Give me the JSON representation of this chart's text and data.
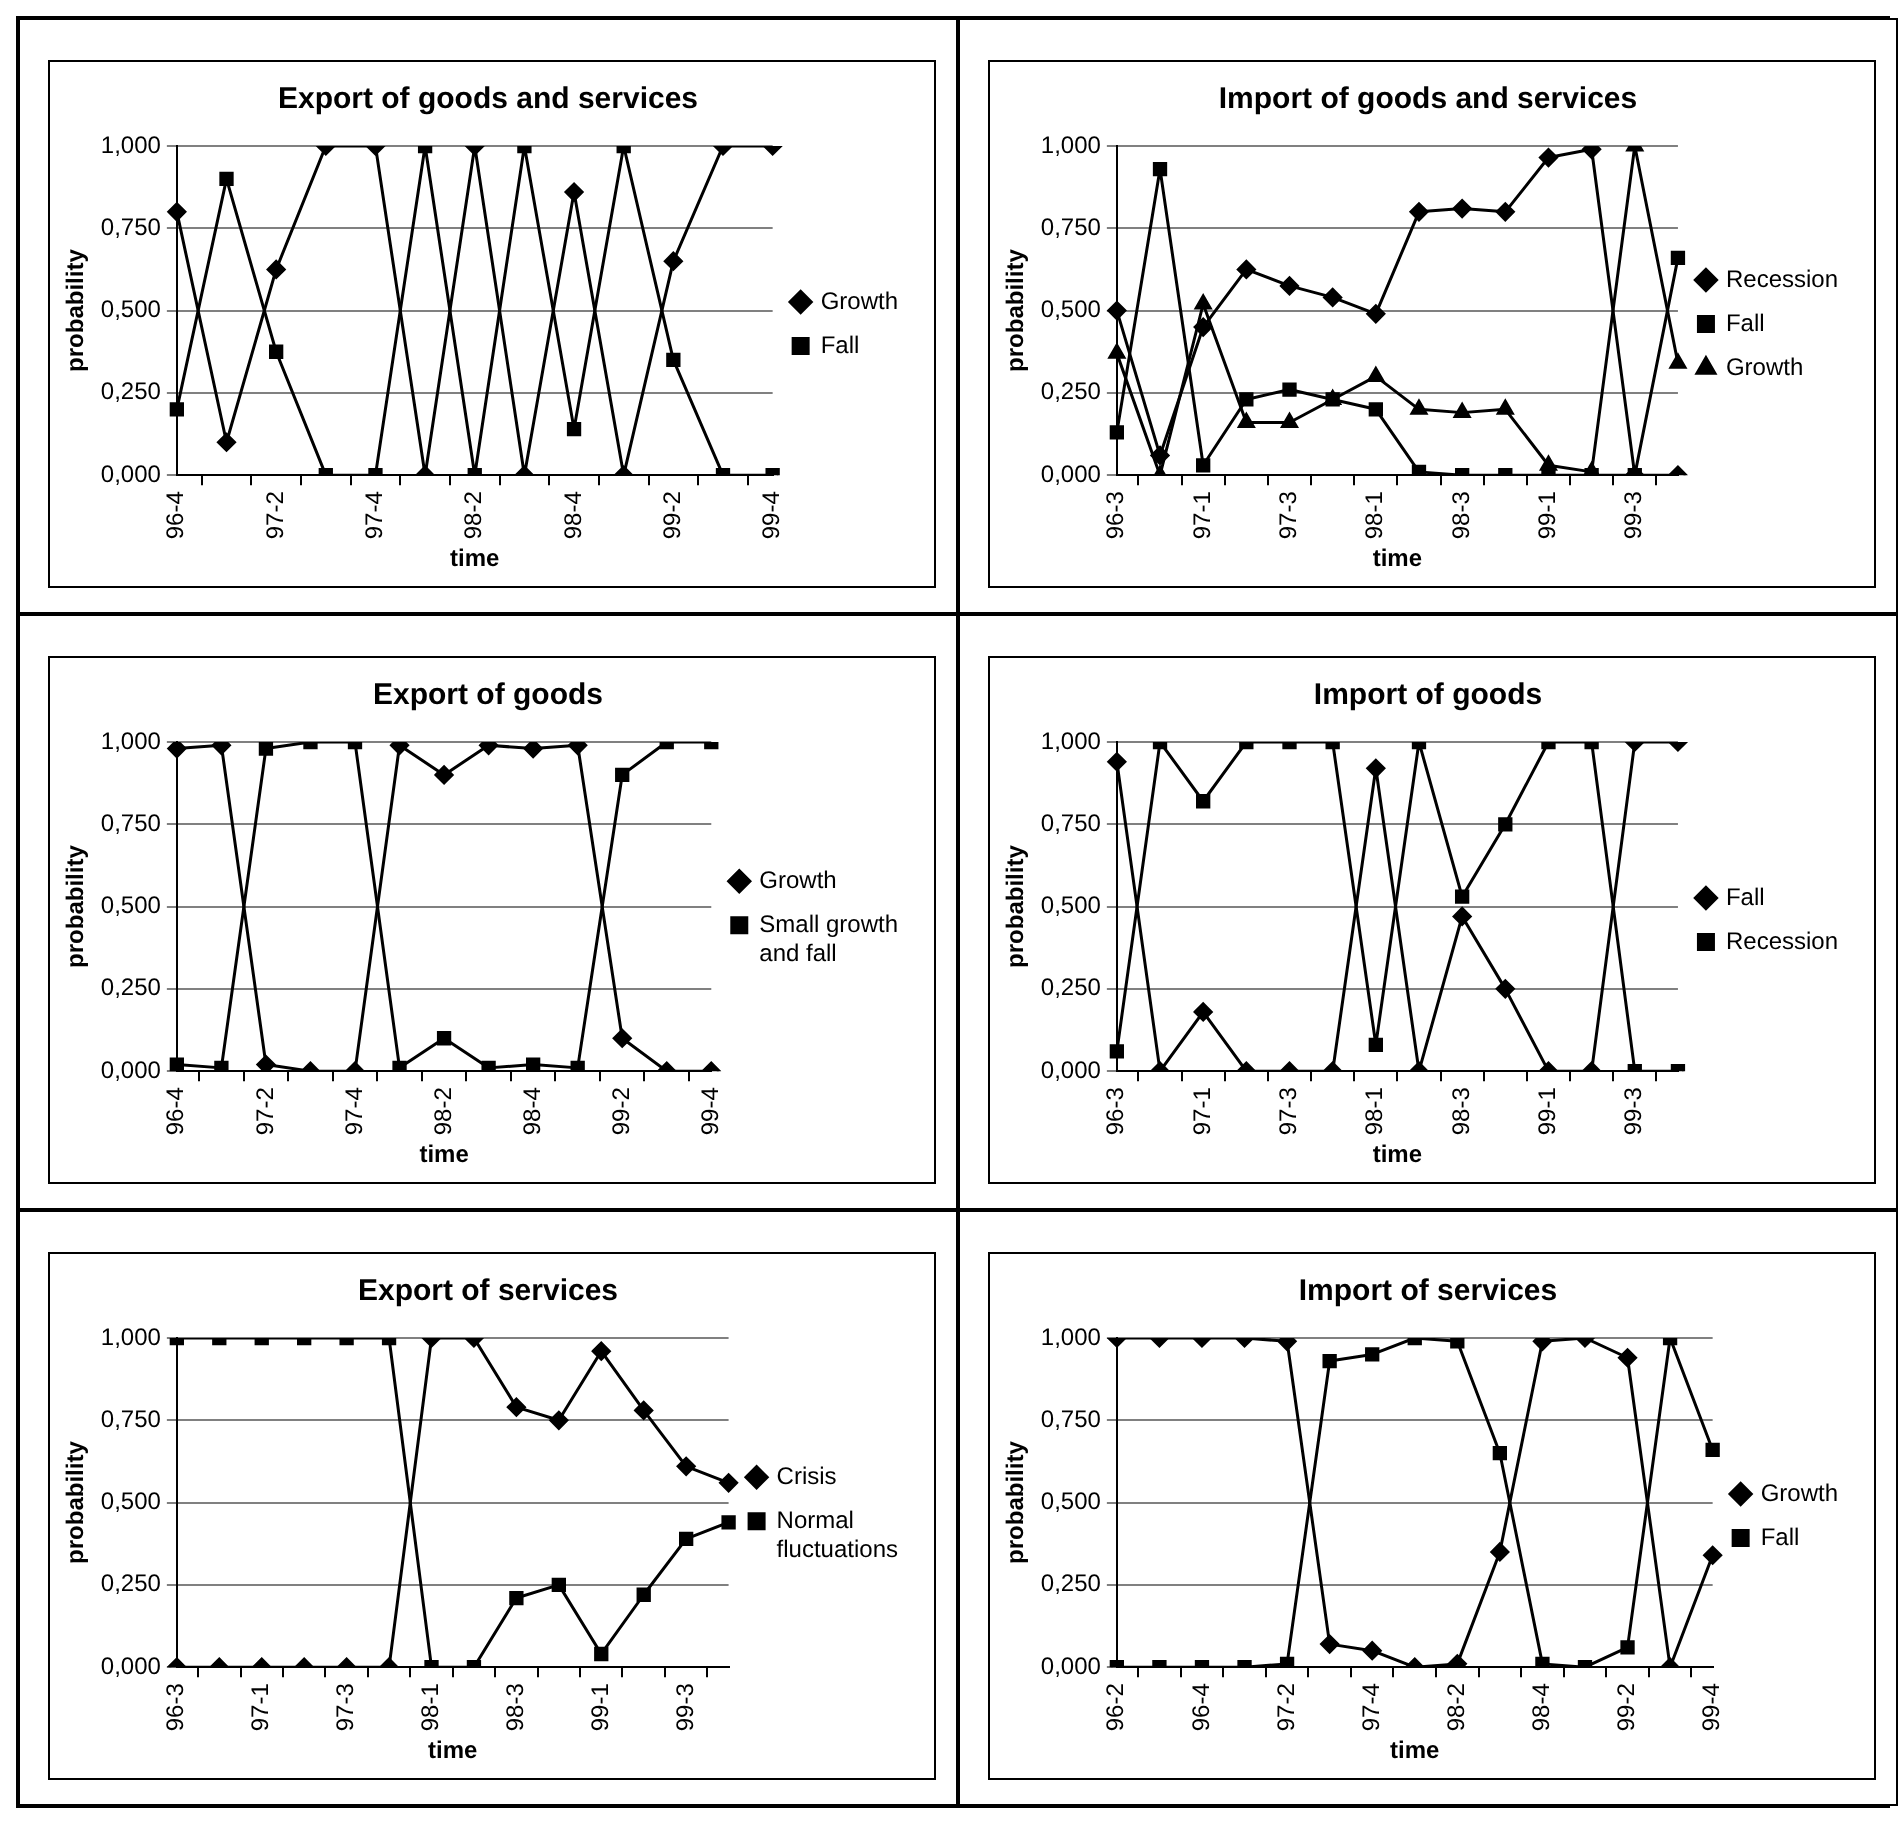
{
  "chart_data": [
    {
      "type": "line",
      "title": "Export of goods and services",
      "xlabel": "time",
      "ylabel": "probability",
      "categories": [
        "96-4",
        null,
        "97-2",
        null,
        "97-4",
        null,
        "98-2",
        null,
        "98-4",
        null,
        "99-2",
        null,
        "99-4"
      ],
      "ylim": [
        0,
        1
      ],
      "yticks": [
        {
          "value": 0,
          "label": "0,000"
        },
        {
          "value": 0.25,
          "label": "0,250"
        },
        {
          "value": 0.5,
          "label": "0,500"
        },
        {
          "value": 0.75,
          "label": "0,750"
        },
        {
          "value": 1,
          "label": "1,000"
        }
      ],
      "grid": "y",
      "legend": "right",
      "series": [
        {
          "name": "Growth",
          "color": "#000000",
          "marker": "diamond",
          "values": [
            0.8,
            0.1,
            0.625,
            1,
            1,
            0,
            1,
            0,
            0.86,
            0,
            0.65,
            1,
            1
          ]
        },
        {
          "name": "Fall",
          "color": "#000000",
          "marker": "square",
          "values": [
            0.2,
            0.9,
            0.375,
            0,
            0,
            1,
            0,
            1,
            0.14,
            1,
            0.35,
            0,
            0
          ]
        }
      ]
    },
    {
      "type": "line",
      "title": "Import of goods and services",
      "xlabel": "time",
      "ylabel": "probability",
      "categories": [
        "96-3",
        null,
        "97-1",
        null,
        "97-3",
        null,
        "98-1",
        null,
        "98-3",
        null,
        "99-1",
        null,
        "99-3",
        null
      ],
      "ylim": [
        0,
        1
      ],
      "yticks": [
        {
          "value": 0,
          "label": "0,000"
        },
        {
          "value": 0.25,
          "label": "0,250"
        },
        {
          "value": 0.5,
          "label": "0,500"
        },
        {
          "value": 0.75,
          "label": "0,750"
        },
        {
          "value": 1,
          "label": "1,000"
        }
      ],
      "grid": "y",
      "legend": "right",
      "series": [
        {
          "name": "Recession",
          "color": "#000000",
          "marker": "diamond",
          "values": [
            0.5,
            0.06,
            0.45,
            0.625,
            0.575,
            0.54,
            0.49,
            0.8,
            0.81,
            0.8,
            0.965,
            0.99,
            0,
            0
          ]
        },
        {
          "name": "Fall",
          "color": "#000000",
          "marker": "square",
          "values": [
            0.13,
            0.93,
            0.03,
            0.23,
            0.26,
            0.23,
            0.2,
            0.01,
            0,
            0,
            0,
            0,
            0,
            0.66
          ]
        },
        {
          "name": "Growth",
          "color": "#000000",
          "marker": "triangle",
          "values": [
            0.37,
            0,
            0.52,
            0.16,
            0.16,
            0.23,
            0.3,
            0.2,
            0.19,
            0.2,
            0.03,
            0.01,
            1,
            0.34
          ]
        }
      ]
    },
    {
      "type": "line",
      "title": "Export of goods",
      "xlabel": "time",
      "ylabel": "probability",
      "categories": [
        "96-4",
        null,
        "97-2",
        null,
        "97-4",
        null,
        "98-2",
        null,
        "98-4",
        null,
        "99-2",
        null,
        "99-4"
      ],
      "ylim": [
        0,
        1
      ],
      "yticks": [
        {
          "value": 0,
          "label": "0,000"
        },
        {
          "value": 0.25,
          "label": "0,250"
        },
        {
          "value": 0.5,
          "label": "0,500"
        },
        {
          "value": 0.75,
          "label": "0,750"
        },
        {
          "value": 1,
          "label": "1,000"
        }
      ],
      "grid": "y",
      "legend": "right",
      "series": [
        {
          "name": "Growth",
          "color": "#000000",
          "marker": "diamond",
          "values": [
            0.98,
            0.99,
            0.02,
            0,
            0,
            0.99,
            0.9,
            0.99,
            0.98,
            0.99,
            0.1,
            0,
            0
          ]
        },
        {
          "name": "Small growth and fall",
          "color": "#000000",
          "marker": "square",
          "values": [
            0.02,
            0.01,
            0.98,
            1,
            1,
            0.01,
            0.1,
            0.01,
            0.02,
            0.01,
            0.9,
            1,
            1
          ]
        }
      ]
    },
    {
      "type": "line",
      "title": "Import of goods",
      "xlabel": "time",
      "ylabel": "probability",
      "categories": [
        "96-3",
        null,
        "97-1",
        null,
        "97-3",
        null,
        "98-1",
        null,
        "98-3",
        null,
        "99-1",
        null,
        "99-3",
        null
      ],
      "ylim": [
        0,
        1
      ],
      "yticks": [
        {
          "value": 0,
          "label": "0,000"
        },
        {
          "value": 0.25,
          "label": "0,250"
        },
        {
          "value": 0.5,
          "label": "0,500"
        },
        {
          "value": 0.75,
          "label": "0,750"
        },
        {
          "value": 1,
          "label": "1,000"
        }
      ],
      "grid": "y",
      "legend": "right",
      "series": [
        {
          "name": "Fall",
          "color": "#000000",
          "marker": "diamond",
          "values": [
            0.94,
            0,
            0.18,
            0,
            0,
            0,
            0.92,
            0,
            0.47,
            0.25,
            0,
            0,
            1,
            1
          ]
        },
        {
          "name": "Recession",
          "color": "#000000",
          "marker": "square",
          "values": [
            0.06,
            1,
            0.82,
            1,
            1,
            1,
            0.08,
            1,
            0.53,
            0.75,
            1,
            1,
            0,
            0
          ]
        }
      ]
    },
    {
      "type": "line",
      "title": "Export of services",
      "xlabel": "time",
      "ylabel": "probability",
      "categories": [
        "96-3",
        null,
        "97-1",
        null,
        "97-3",
        null,
        "98-1",
        null,
        "98-3",
        null,
        "99-1",
        null,
        "99-3",
        null
      ],
      "ylim": [
        0,
        1
      ],
      "yticks": [
        {
          "value": 0,
          "label": "0,000"
        },
        {
          "value": 0.25,
          "label": "0,250"
        },
        {
          "value": 0.5,
          "label": "0,500"
        },
        {
          "value": 0.75,
          "label": "0,750"
        },
        {
          "value": 1,
          "label": "1,000"
        }
      ],
      "grid": "y",
      "legend": "right",
      "series": [
        {
          "name": "Crisis",
          "color": "#000000",
          "marker": "diamond",
          "values": [
            0,
            0,
            0,
            0,
            0,
            0,
            1,
            1,
            0.79,
            0.75,
            0.96,
            0.78,
            0.61,
            0.56
          ]
        },
        {
          "name": "Normal fluctuations",
          "color": "#000000",
          "marker": "square",
          "values": [
            1,
            1,
            1,
            1,
            1,
            1,
            0,
            0,
            0.21,
            0.25,
            0.04,
            0.22,
            0.39,
            0.44
          ]
        }
      ]
    },
    {
      "type": "line",
      "title": "Import of services",
      "xlabel": "time",
      "ylabel": "probability",
      "categories": [
        "96-2",
        null,
        "96-4",
        null,
        "97-2",
        null,
        "97-4",
        null,
        "98-2",
        null,
        "98-4",
        null,
        "99-2",
        null,
        "99-4"
      ],
      "ylim": [
        0,
        1
      ],
      "yticks": [
        {
          "value": 0,
          "label": "0,000"
        },
        {
          "value": 0.25,
          "label": "0,250"
        },
        {
          "value": 0.5,
          "label": "0,500"
        },
        {
          "value": 0.75,
          "label": "0,750"
        },
        {
          "value": 1,
          "label": "1,000"
        }
      ],
      "grid": "y",
      "legend": "right",
      "series": [
        {
          "name": "Growth",
          "color": "#000000",
          "marker": "diamond",
          "values": [
            1,
            1,
            1,
            1,
            0.99,
            0.07,
            0.05,
            0,
            0.01,
            0.35,
            0.99,
            1,
            0.94,
            0,
            0.34
          ]
        },
        {
          "name": "Fall",
          "color": "#000000",
          "marker": "square",
          "values": [
            0,
            0,
            0,
            0,
            0.01,
            0.93,
            0.95,
            1,
            0.99,
            0.65,
            0.01,
            0,
            0.06,
            1,
            0.66
          ]
        }
      ]
    }
  ]
}
